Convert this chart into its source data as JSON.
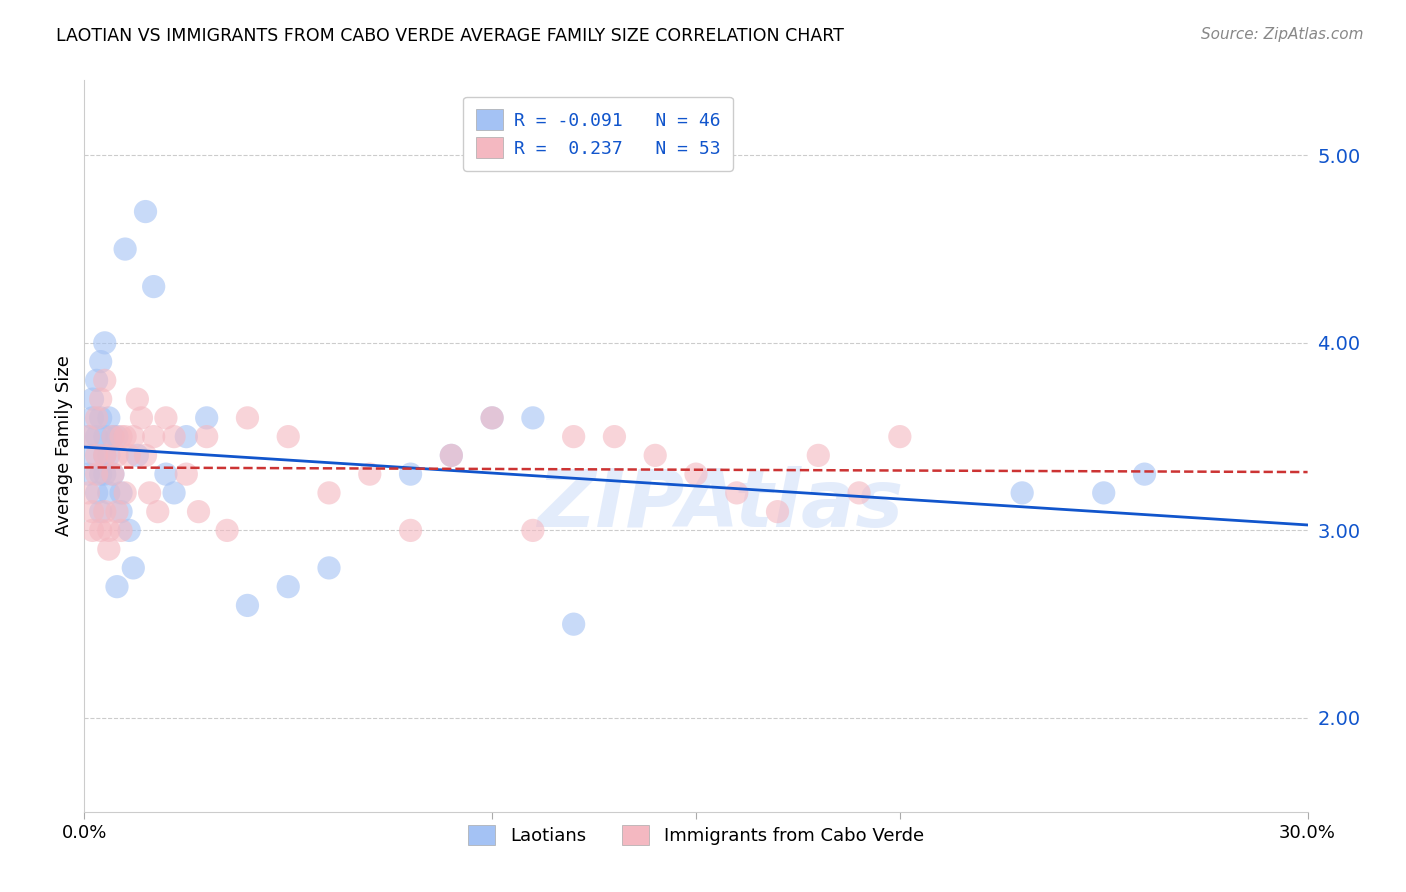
{
  "title": "LAOTIAN VS IMMIGRANTS FROM CABO VERDE AVERAGE FAMILY SIZE CORRELATION CHART",
  "source": "Source: ZipAtlas.com",
  "ylabel": "Average Family Size",
  "watermark": "ZIPAtlas",
  "right_yticks": [
    2.0,
    3.0,
    4.0,
    5.0
  ],
  "xlim": [
    0.0,
    0.3
  ],
  "ylim": [
    1.5,
    5.4
  ],
  "laotian_R": "-0.091",
  "laotian_N": "46",
  "caboverde_R": "0.237",
  "caboverde_N": "53",
  "laotian_color": "#a4c2f4",
  "caboverde_color": "#f4b8c1",
  "laotian_x": [
    0.001,
    0.001,
    0.002,
    0.002,
    0.002,
    0.003,
    0.003,
    0.003,
    0.004,
    0.004,
    0.004,
    0.004,
    0.005,
    0.005,
    0.005,
    0.005,
    0.006,
    0.006,
    0.006,
    0.007,
    0.007,
    0.008,
    0.008,
    0.009,
    0.009,
    0.01,
    0.011,
    0.012,
    0.013,
    0.015,
    0.017,
    0.02,
    0.022,
    0.025,
    0.03,
    0.04,
    0.05,
    0.06,
    0.08,
    0.09,
    0.1,
    0.11,
    0.12,
    0.23,
    0.25,
    0.26
  ],
  "laotian_y": [
    3.3,
    3.5,
    3.4,
    3.6,
    3.7,
    3.2,
    3.5,
    3.8,
    3.3,
    3.1,
    3.6,
    3.9,
    3.4,
    3.5,
    3.3,
    4.0,
    3.2,
    3.6,
    3.4,
    3.5,
    3.3,
    2.7,
    3.5,
    3.1,
    3.2,
    4.5,
    3.0,
    2.8,
    3.4,
    4.7,
    4.3,
    3.3,
    3.2,
    3.5,
    3.6,
    2.6,
    2.7,
    2.8,
    3.3,
    3.4,
    3.6,
    3.6,
    2.5,
    3.2,
    3.2,
    3.3
  ],
  "caboverde_x": [
    0.001,
    0.001,
    0.002,
    0.002,
    0.003,
    0.003,
    0.003,
    0.004,
    0.004,
    0.005,
    0.005,
    0.005,
    0.006,
    0.006,
    0.007,
    0.007,
    0.008,
    0.008,
    0.009,
    0.009,
    0.01,
    0.01,
    0.011,
    0.012,
    0.013,
    0.014,
    0.015,
    0.016,
    0.017,
    0.018,
    0.02,
    0.022,
    0.025,
    0.028,
    0.03,
    0.035,
    0.04,
    0.05,
    0.06,
    0.07,
    0.08,
    0.09,
    0.1,
    0.11,
    0.12,
    0.13,
    0.14,
    0.15,
    0.16,
    0.17,
    0.18,
    0.19,
    0.2
  ],
  "caboverde_y": [
    3.2,
    3.5,
    3.1,
    3.0,
    3.6,
    3.3,
    3.4,
    3.0,
    3.7,
    3.8,
    3.4,
    3.1,
    3.0,
    2.9,
    3.5,
    3.3,
    3.1,
    3.4,
    3.5,
    3.0,
    3.2,
    3.5,
    3.4,
    3.5,
    3.7,
    3.6,
    3.4,
    3.2,
    3.5,
    3.1,
    3.6,
    3.5,
    3.3,
    3.1,
    3.5,
    3.0,
    3.6,
    3.5,
    3.2,
    3.3,
    3.0,
    3.4,
    3.6,
    3.0,
    3.5,
    3.5,
    3.4,
    3.3,
    3.2,
    3.1,
    3.4,
    3.2,
    3.5
  ],
  "laotian_line_color": "#1155cc",
  "caboverde_line_color": "#cc3333",
  "grid_color": "#cccccc",
  "right_axis_color": "#1155cc",
  "legend_text_color": "#1155cc",
  "background_color": "#ffffff"
}
